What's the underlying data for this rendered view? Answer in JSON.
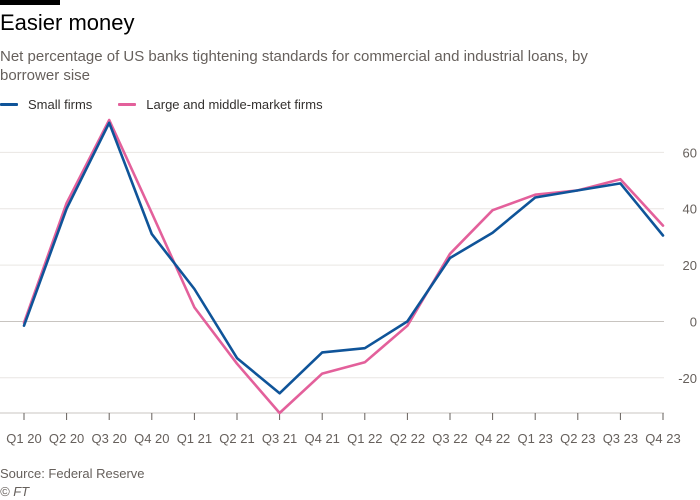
{
  "chart_data": {
    "type": "line",
    "title": "Easier money",
    "subtitle": "Net percentage of US banks tightening standards for commercial and industrial loans, by borrower sise",
    "source": "Source: Federal Reserve",
    "copyright": "© FT",
    "categories": [
      "Q1 20",
      "Q2 20",
      "Q3 20",
      "Q4 20",
      "Q1 21",
      "Q2 21",
      "Q3 21",
      "Q4 21",
      "Q1 22",
      "Q2 22",
      "Q3 22",
      "Q4 22",
      "Q1 23",
      "Q2 23",
      "Q3 23",
      "Q4 23"
    ],
    "series": [
      {
        "name": "Small firms",
        "color": "#0f5499",
        "values": [
          -1.5,
          40,
          70.5,
          31,
          11.5,
          -13,
          -25.5,
          -11,
          -9.5,
          0,
          22.5,
          31.5,
          44,
          46.5,
          49,
          30.5
        ]
      },
      {
        "name": "Large and middle-market firms",
        "color": "#e3609b",
        "values": [
          -0.5,
          42,
          71.5,
          38.5,
          5,
          -15,
          -32.5,
          -18.5,
          -14.5,
          -1.5,
          24,
          39.5,
          45,
          46.5,
          50.5,
          34
        ]
      }
    ],
    "ylim": [
      -32.5,
      71.5
    ],
    "yticks": [
      -20,
      0,
      20,
      40,
      60
    ],
    "ytick_labels": [
      "-20",
      "0",
      "20",
      "40",
      "60"
    ],
    "grid": true,
    "y_axis_side": "right",
    "legend_position": "top-left"
  }
}
